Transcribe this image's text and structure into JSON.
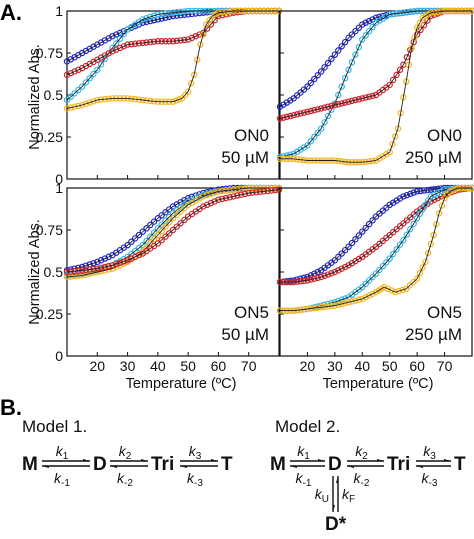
{
  "figure": {
    "label_a": "A.",
    "label_b": "B."
  },
  "colors": {
    "blue": "#1f25c8",
    "cyan": "#32b8e8",
    "red": "#d2232a",
    "gold": "#f6b51a",
    "line": "#222222"
  },
  "axes": {
    "ylabel": "Normalized Abs.",
    "xlabel": "Temperature (ºC)",
    "xticks": [
      20,
      30,
      40,
      50,
      60,
      70
    ],
    "ytick_labels": [
      "0",
      "0.25",
      "0.5",
      "0.75",
      "1"
    ]
  },
  "chart_data": [
    {
      "type": "line",
      "annotation": [
        "ON0",
        "50 µM"
      ],
      "xlim": [
        10,
        80
      ],
      "ylim": [
        0,
        1
      ],
      "series": [
        {
          "color": "blue",
          "x": [
            10,
            15,
            20,
            25,
            30,
            35,
            40,
            45,
            50,
            55,
            60,
            65,
            70,
            75,
            80
          ],
          "y": [
            0.7,
            0.75,
            0.8,
            0.85,
            0.89,
            0.93,
            0.95,
            0.97,
            0.98,
            0.99,
            1.0,
            1.0,
            1.0,
            1.0,
            1.0
          ]
        },
        {
          "color": "cyan",
          "x": [
            10,
            15,
            20,
            25,
            30,
            35,
            40,
            45,
            50,
            55,
            60,
            65,
            70,
            75,
            80
          ],
          "y": [
            0.47,
            0.55,
            0.65,
            0.78,
            0.89,
            0.95,
            0.98,
            0.99,
            1.0,
            1.0,
            1.0,
            1.0,
            1.0,
            1.0,
            1.0
          ]
        },
        {
          "color": "red",
          "x": [
            10,
            15,
            20,
            25,
            30,
            35,
            40,
            45,
            50,
            55,
            60,
            65,
            70,
            75,
            80
          ],
          "y": [
            0.62,
            0.66,
            0.71,
            0.76,
            0.8,
            0.81,
            0.82,
            0.82,
            0.83,
            0.87,
            0.97,
            0.99,
            1.0,
            1.0,
            1.0
          ]
        },
        {
          "color": "gold",
          "x": [
            10,
            15,
            20,
            25,
            30,
            35,
            40,
            45,
            48,
            50,
            52,
            54,
            56,
            58,
            60,
            65,
            70,
            75,
            80
          ],
          "y": [
            0.42,
            0.44,
            0.47,
            0.48,
            0.48,
            0.47,
            0.46,
            0.46,
            0.48,
            0.52,
            0.62,
            0.8,
            0.92,
            0.97,
            0.99,
            1.0,
            1.0,
            1.0,
            1.0
          ]
        }
      ]
    },
    {
      "type": "line",
      "annotation": [
        "ON0",
        "250 µM"
      ],
      "xlim": [
        10,
        80
      ],
      "ylim": [
        0,
        1
      ],
      "series": [
        {
          "color": "blue",
          "x": [
            10,
            15,
            20,
            25,
            30,
            35,
            40,
            45,
            50,
            55,
            60,
            65,
            70,
            75,
            80
          ],
          "y": [
            0.43,
            0.48,
            0.55,
            0.64,
            0.74,
            0.84,
            0.92,
            0.96,
            0.98,
            0.99,
            1.0,
            1.0,
            1.0,
            1.0,
            1.0
          ]
        },
        {
          "color": "cyan",
          "x": [
            10,
            15,
            20,
            25,
            30,
            35,
            40,
            45,
            50,
            55,
            60,
            65,
            70,
            75,
            80
          ],
          "y": [
            0.13,
            0.15,
            0.2,
            0.3,
            0.45,
            0.65,
            0.83,
            0.93,
            0.98,
            0.99,
            1.0,
            1.0,
            1.0,
            1.0,
            1.0
          ]
        },
        {
          "color": "red",
          "x": [
            10,
            15,
            20,
            25,
            30,
            35,
            40,
            45,
            50,
            55,
            60,
            65,
            70,
            75,
            80
          ],
          "y": [
            0.36,
            0.38,
            0.4,
            0.42,
            0.44,
            0.46,
            0.48,
            0.5,
            0.56,
            0.68,
            0.86,
            0.97,
            1.0,
            1.0,
            1.0
          ]
        },
        {
          "color": "gold",
          "x": [
            10,
            15,
            20,
            25,
            30,
            35,
            40,
            45,
            50,
            53,
            56,
            58,
            60,
            62,
            65,
            70,
            75,
            80
          ],
          "y": [
            0.12,
            0.12,
            0.11,
            0.11,
            0.11,
            0.1,
            0.1,
            0.11,
            0.16,
            0.3,
            0.58,
            0.78,
            0.9,
            0.96,
            0.99,
            1.0,
            1.0,
            1.0
          ]
        }
      ]
    },
    {
      "type": "line",
      "annotation": [
        "ON5",
        "50 µM"
      ],
      "xlim": [
        10,
        80
      ],
      "ylim": [
        0,
        1
      ],
      "series": [
        {
          "color": "blue",
          "x": [
            10,
            15,
            20,
            25,
            30,
            35,
            40,
            45,
            50,
            55,
            60,
            65,
            70,
            75,
            80
          ],
          "y": [
            0.51,
            0.53,
            0.56,
            0.6,
            0.66,
            0.74,
            0.82,
            0.89,
            0.94,
            0.97,
            0.99,
            1.0,
            1.0,
            1.0,
            1.0
          ]
        },
        {
          "color": "cyan",
          "x": [
            10,
            15,
            20,
            25,
            30,
            35,
            40,
            45,
            50,
            55,
            60,
            65,
            70,
            75,
            80
          ],
          "y": [
            0.48,
            0.49,
            0.51,
            0.54,
            0.59,
            0.66,
            0.76,
            0.85,
            0.92,
            0.96,
            0.98,
            0.99,
            1.0,
            1.0,
            1.0
          ]
        },
        {
          "color": "gold",
          "x": [
            10,
            15,
            20,
            25,
            30,
            35,
            40,
            45,
            50,
            55,
            60,
            65,
            70,
            75,
            80
          ],
          "y": [
            0.47,
            0.48,
            0.5,
            0.52,
            0.56,
            0.62,
            0.72,
            0.82,
            0.9,
            0.95,
            0.98,
            0.99,
            1.0,
            1.0,
            1.0
          ]
        },
        {
          "color": "red",
          "x": [
            10,
            15,
            20,
            25,
            30,
            35,
            40,
            45,
            50,
            55,
            60,
            65,
            70,
            75,
            80
          ],
          "y": [
            0.5,
            0.51,
            0.52,
            0.54,
            0.57,
            0.61,
            0.67,
            0.75,
            0.83,
            0.89,
            0.93,
            0.95,
            0.97,
            0.98,
            0.99
          ]
        }
      ]
    },
    {
      "type": "line",
      "annotation": [
        "ON5",
        "250 µM"
      ],
      "xlim": [
        10,
        80
      ],
      "ylim": [
        0,
        1
      ],
      "series": [
        {
          "color": "blue",
          "x": [
            10,
            15,
            20,
            25,
            30,
            35,
            40,
            45,
            50,
            55,
            60,
            65,
            70,
            75,
            80
          ],
          "y": [
            0.44,
            0.45,
            0.47,
            0.51,
            0.57,
            0.65,
            0.74,
            0.83,
            0.9,
            0.95,
            0.98,
            0.99,
            1.0,
            1.0,
            1.0
          ]
        },
        {
          "color": "red",
          "x": [
            10,
            15,
            20,
            25,
            30,
            35,
            40,
            45,
            50,
            55,
            60,
            65,
            70,
            75,
            80
          ],
          "y": [
            0.44,
            0.44,
            0.45,
            0.47,
            0.5,
            0.54,
            0.59,
            0.65,
            0.72,
            0.79,
            0.86,
            0.92,
            0.96,
            0.99,
            1.0
          ]
        },
        {
          "color": "cyan",
          "x": [
            10,
            15,
            20,
            25,
            30,
            35,
            40,
            45,
            50,
            55,
            60,
            63,
            65,
            70,
            75,
            80
          ],
          "y": [
            0.27,
            0.27,
            0.28,
            0.3,
            0.32,
            0.35,
            0.41,
            0.49,
            0.58,
            0.69,
            0.82,
            0.9,
            0.95,
            0.99,
            1.0,
            1.0
          ]
        },
        {
          "color": "gold",
          "x": [
            10,
            15,
            20,
            25,
            30,
            35,
            40,
            45,
            48,
            52,
            56,
            60,
            63,
            66,
            68,
            70,
            72,
            75,
            80
          ],
          "y": [
            0.27,
            0.27,
            0.28,
            0.29,
            0.3,
            0.32,
            0.34,
            0.38,
            0.41,
            0.38,
            0.4,
            0.46,
            0.56,
            0.72,
            0.85,
            0.94,
            0.98,
            1.0,
            1.0
          ]
        }
      ]
    }
  ],
  "models": {
    "model1": {
      "title": "Model 1.",
      "species": [
        "M",
        "D",
        "Tri",
        "T"
      ],
      "rates": [
        [
          "k",
          "1",
          "k",
          "-1"
        ],
        [
          "k",
          "2",
          "k",
          "-2"
        ],
        [
          "k",
          "3",
          "k",
          "-3"
        ]
      ]
    },
    "model2": {
      "title": "Model 2.",
      "species": [
        "M",
        "D",
        "Tri",
        "T"
      ],
      "rates": [
        [
          "k",
          "1",
          "k",
          "-1"
        ],
        [
          "k",
          "2",
          "k",
          "-2"
        ],
        [
          "k",
          "3",
          "k",
          "-3"
        ]
      ],
      "branch_species": "D*",
      "branch_rates": {
        "k_u": "k",
        "u_sub": "U",
        "k_f": "k",
        "f_sub": "F"
      }
    }
  }
}
